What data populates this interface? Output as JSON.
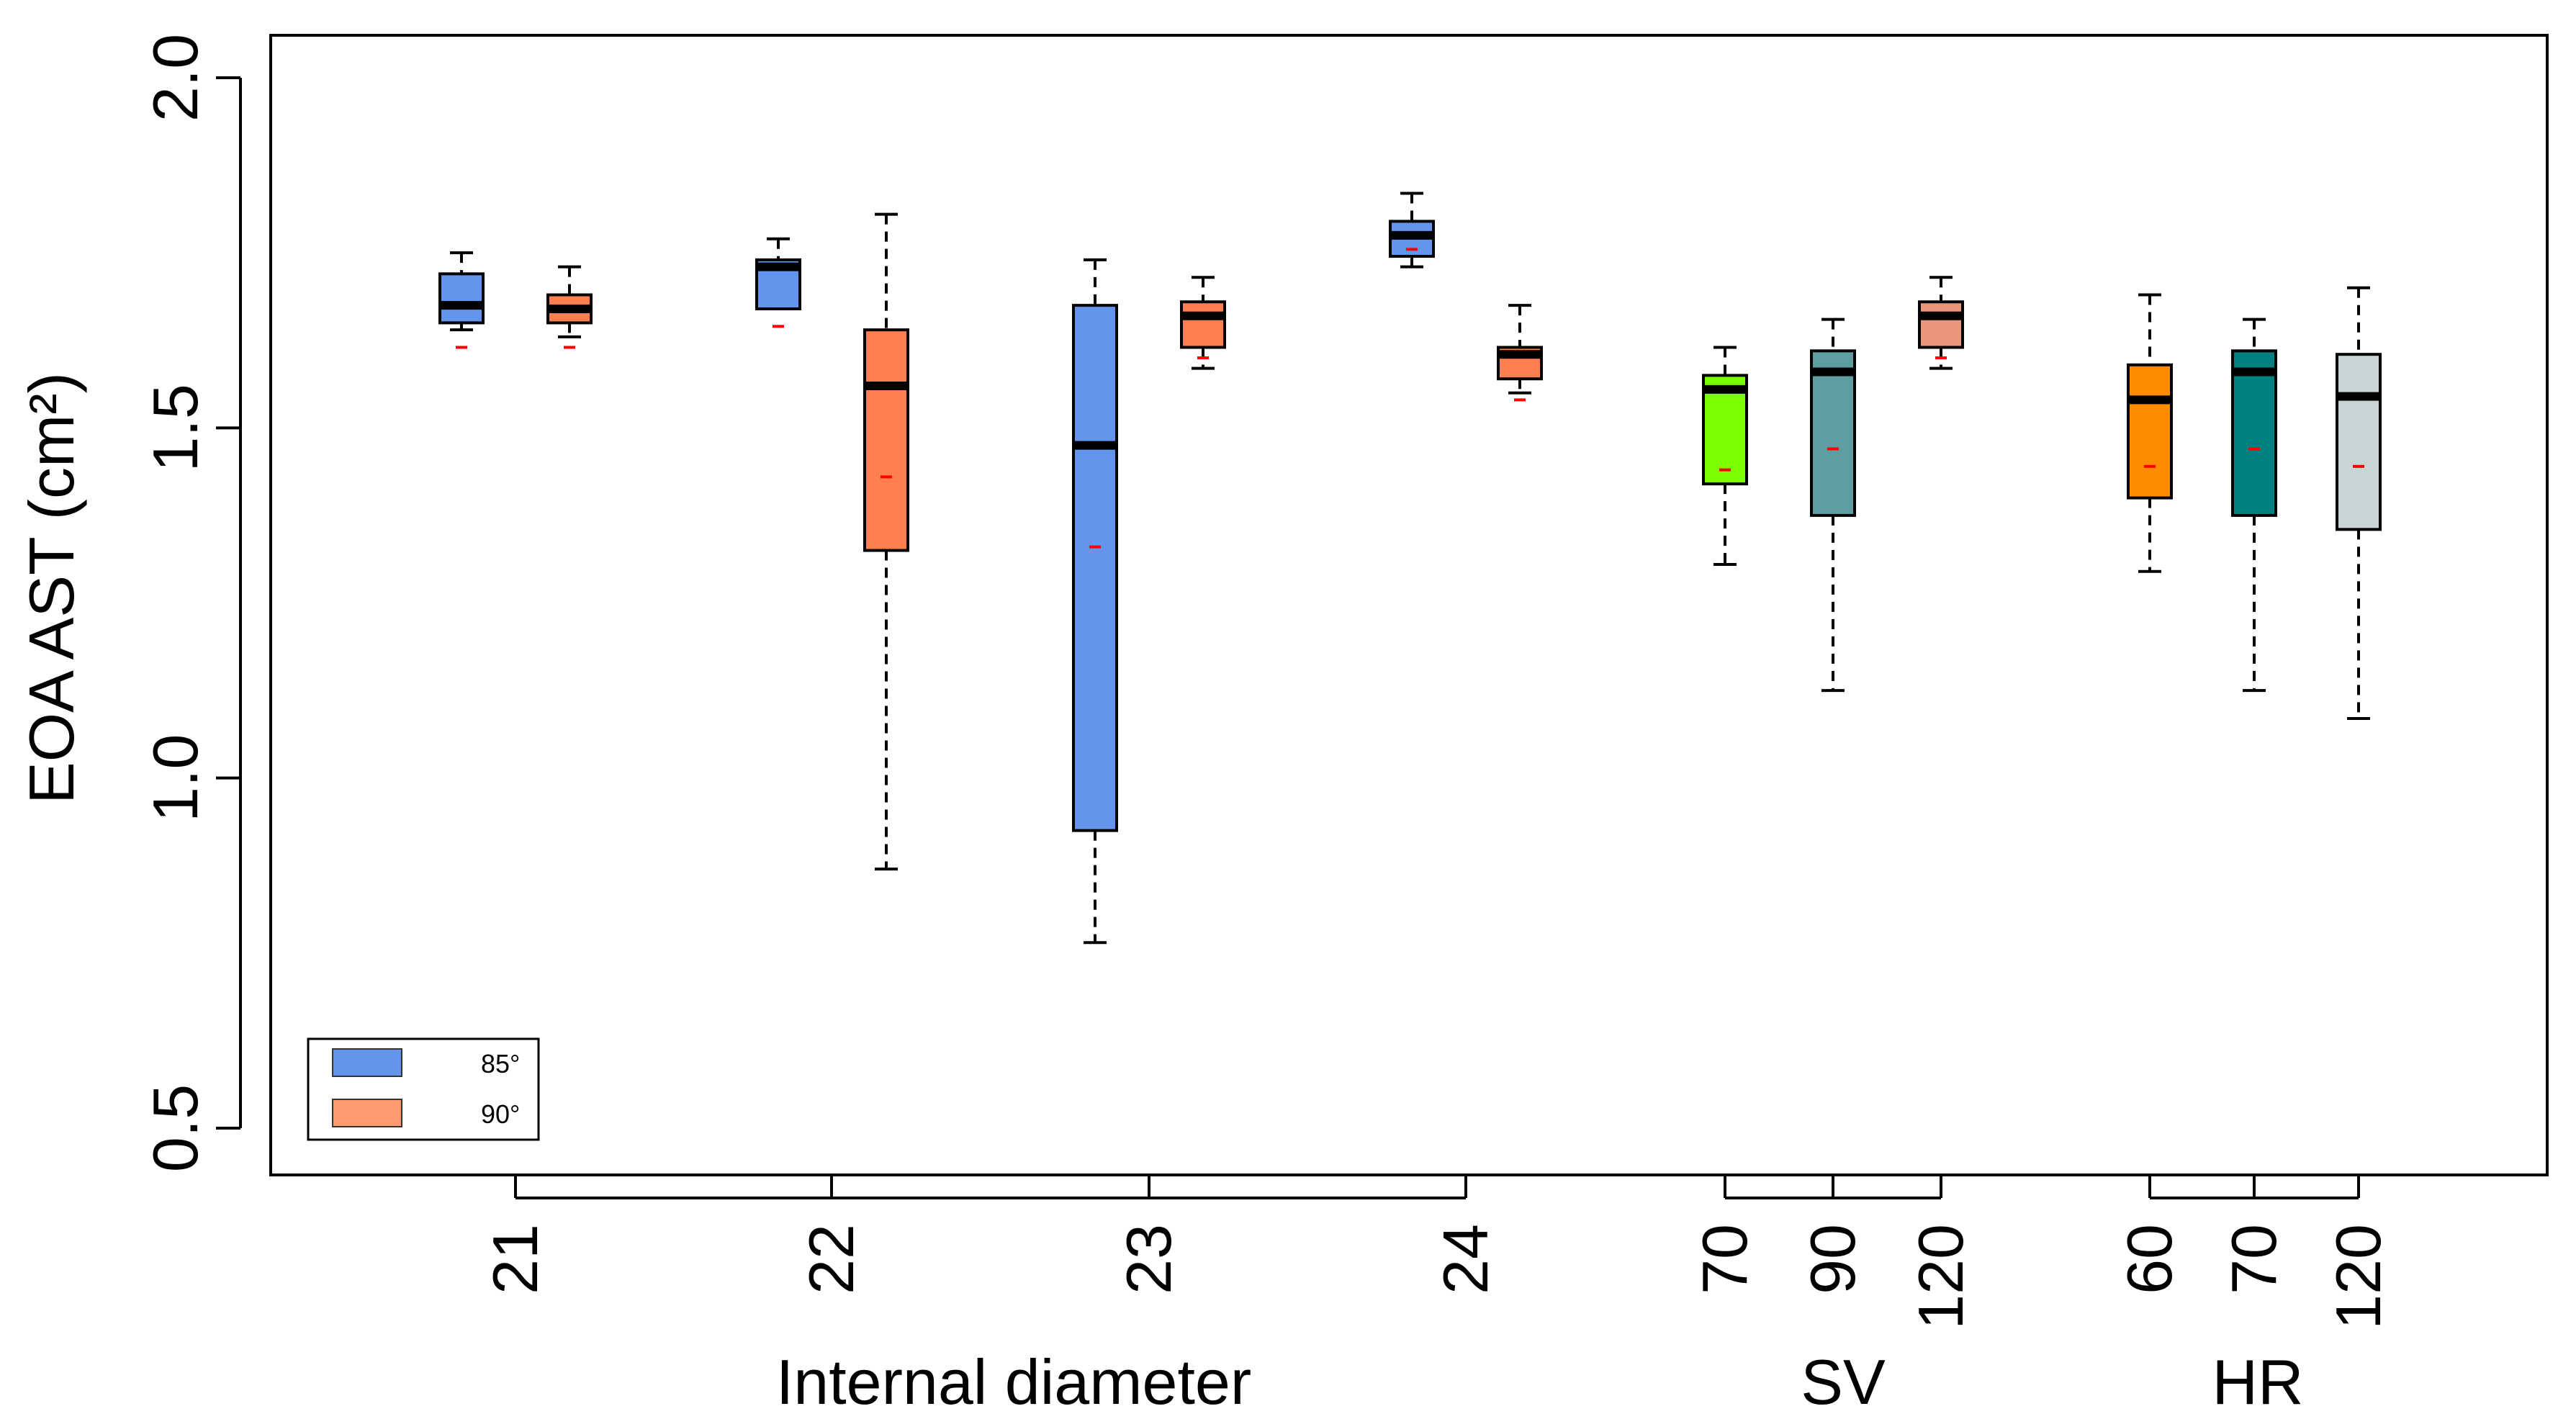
{
  "chart_data": {
    "type": "boxplot",
    "title": "",
    "ylabel": "EOA AST (cm²)",
    "ylim": [
      0.5,
      2.0
    ],
    "yticks": [
      "0.5",
      "1.0",
      "1.5",
      "2.0"
    ],
    "groups": [
      {
        "label": "Internal diameter"
      },
      {
        "label": "SV"
      },
      {
        "label": "HR"
      }
    ],
    "tick_labels": [
      "21",
      "22",
      "23",
      "24",
      "70",
      "90",
      "120",
      "60",
      "70",
      "120"
    ],
    "legend": {
      "position": "bottom-left",
      "entries": [
        {
          "label": "85°",
          "color": "#6495ED"
        },
        {
          "label": "90°",
          "color": "#FF9B70"
        }
      ]
    },
    "mean_marker_color": "#FF0000",
    "boxes": [
      {
        "category": "21",
        "series": "85°",
        "color": "#6495ED",
        "whisker_low": 1.64,
        "q1": 1.65,
        "median": 1.675,
        "q3": 1.72,
        "whisker_high": 1.75,
        "mean": 1.615
      },
      {
        "category": "21",
        "series": "90°",
        "color": "#FF7F50",
        "whisker_low": 1.63,
        "q1": 1.65,
        "median": 1.67,
        "q3": 1.69,
        "whisker_high": 1.73,
        "mean": 1.615
      },
      {
        "category": "22",
        "series": "85°",
        "color": "#6495ED",
        "whisker_low": 1.67,
        "q1": 1.67,
        "median": 1.73,
        "q3": 1.74,
        "whisker_high": 1.77,
        "mean": 1.645
      },
      {
        "category": "22",
        "series": "90°",
        "color": "#FF7F50",
        "whisker_low": 0.87,
        "q1": 1.325,
        "median": 1.56,
        "q3": 1.64,
        "whisker_high": 1.805,
        "mean": 1.43
      },
      {
        "category": "23",
        "series": "85°",
        "color": "#6495ED",
        "whisker_low": 0.765,
        "q1": 0.925,
        "median": 1.475,
        "q3": 1.675,
        "whisker_high": 1.74,
        "mean": 1.33
      },
      {
        "category": "23",
        "series": "90°",
        "color": "#FF7F50",
        "whisker_low": 1.585,
        "q1": 1.615,
        "median": 1.66,
        "q3": 1.68,
        "whisker_high": 1.715,
        "mean": 1.6
      },
      {
        "category": "24",
        "series": "85°",
        "color": "#6495ED",
        "whisker_low": 1.73,
        "q1": 1.745,
        "median": 1.775,
        "q3": 1.795,
        "whisker_high": 1.835,
        "mean": 1.755
      },
      {
        "category": "24",
        "series": "90°",
        "color": "#FF7F50",
        "whisker_low": 1.55,
        "q1": 1.57,
        "median": 1.605,
        "q3": 1.615,
        "whisker_high": 1.675,
        "mean": 1.54
      },
      {
        "category": "70",
        "series": "SV",
        "color": "#7CFC00",
        "whisker_low": 1.305,
        "q1": 1.42,
        "median": 1.555,
        "q3": 1.575,
        "whisker_high": 1.615,
        "mean": 1.44
      },
      {
        "category": "90",
        "series": "SV",
        "color": "#5F9EA0",
        "whisker_low": 1.125,
        "q1": 1.375,
        "median": 1.58,
        "q3": 1.61,
        "whisker_high": 1.655,
        "mean": 1.47
      },
      {
        "category": "120",
        "series": "SV",
        "color": "#E9967A",
        "whisker_low": 1.585,
        "q1": 1.615,
        "median": 1.66,
        "q3": 1.68,
        "whisker_high": 1.715,
        "mean": 1.6
      },
      {
        "category": "60",
        "series": "HR",
        "color": "#FF8C00",
        "whisker_low": 1.295,
        "q1": 1.4,
        "median": 1.54,
        "q3": 1.59,
        "whisker_high": 1.69,
        "mean": 1.445
      },
      {
        "category": "70",
        "series": "HR",
        "color": "#008080",
        "whisker_low": 1.125,
        "q1": 1.375,
        "median": 1.58,
        "q3": 1.61,
        "whisker_high": 1.655,
        "mean": 1.47
      },
      {
        "category": "120",
        "series": "HR",
        "color": "#C9D4D4",
        "whisker_low": 1.085,
        "q1": 1.355,
        "median": 1.545,
        "q3": 1.605,
        "whisker_high": 1.7,
        "mean": 1.445
      }
    ]
  }
}
